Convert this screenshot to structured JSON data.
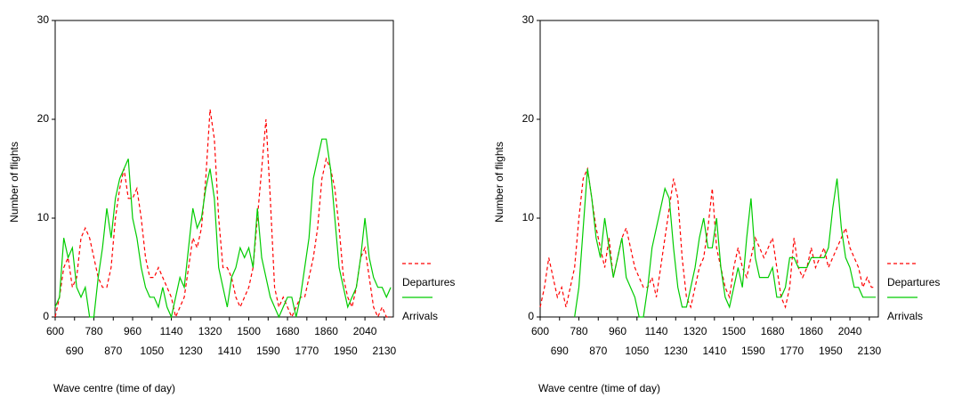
{
  "chart_data": [
    {
      "type": "line",
      "xlabel": "Wave centre (time of day)",
      "ylabel": "Number of flights",
      "x": [
        600,
        620,
        640,
        660,
        680,
        700,
        720,
        740,
        760,
        780,
        800,
        820,
        840,
        860,
        880,
        900,
        920,
        940,
        960,
        980,
        1000,
        1020,
        1040,
        1060,
        1080,
        1100,
        1120,
        1140,
        1160,
        1180,
        1200,
        1220,
        1240,
        1260,
        1280,
        1300,
        1320,
        1340,
        1360,
        1380,
        1400,
        1420,
        1440,
        1460,
        1480,
        1500,
        1520,
        1540,
        1560,
        1580,
        1600,
        1620,
        1640,
        1660,
        1680,
        1700,
        1720,
        1740,
        1760,
        1780,
        1800,
        1820,
        1840,
        1860,
        1880,
        1900,
        1920,
        1940,
        1960,
        1980,
        2000,
        2020,
        2040,
        2060,
        2080,
        2100,
        2120,
        2140,
        2160
      ],
      "series": [
        {
          "name": "Departures",
          "color": "#ff0000",
          "dashed": true,
          "values": [
            0,
            2,
            5,
            6,
            3,
            4,
            8,
            9,
            8,
            6,
            4,
            3,
            3,
            5,
            10,
            13,
            15,
            12,
            12,
            13,
            10,
            6,
            4,
            4,
            5,
            4,
            3,
            2,
            0,
            1,
            2,
            5,
            8,
            7,
            9,
            14,
            21,
            18,
            10,
            5,
            5,
            4,
            2,
            1,
            2,
            3,
            5,
            10,
            15,
            20,
            12,
            3,
            1,
            2,
            1,
            0,
            1,
            2,
            2,
            4,
            6,
            9,
            14,
            16,
            15,
            13,
            9,
            4,
            2,
            1,
            3,
            6,
            7,
            4,
            1,
            0,
            1,
            0,
            0
          ]
        },
        {
          "name": "Arrivals",
          "color": "#00cc00",
          "dashed": false,
          "values": [
            1,
            2,
            8,
            6,
            7,
            3,
            2,
            3,
            0,
            0,
            4,
            7,
            11,
            8,
            12,
            14,
            15,
            16,
            10,
            8,
            5,
            3,
            2,
            2,
            1,
            3,
            1,
            0,
            2,
            4,
            3,
            7,
            11,
            9,
            10,
            13,
            15,
            12,
            5,
            3,
            1,
            4,
            5,
            7,
            6,
            7,
            5,
            11,
            6,
            4,
            2,
            1,
            0,
            1,
            2,
            2,
            0,
            2,
            5,
            8,
            14,
            16,
            18,
            18,
            15,
            10,
            5,
            3,
            1,
            2,
            3,
            6,
            10,
            6,
            4,
            3,
            3,
            2,
            3
          ]
        }
      ],
      "xlim": [
        600,
        2172
      ],
      "xticks": [
        600,
        690,
        780,
        870,
        960,
        1050,
        1140,
        1230,
        1320,
        1410,
        1500,
        1590,
        1680,
        1770,
        1860,
        1950,
        2040,
        2130
      ],
      "ylim": [
        0,
        30
      ],
      "yticks": [
        0,
        10,
        20,
        30
      ],
      "legend": "right"
    },
    {
      "type": "line",
      "xlabel": "Wave centre (time of day)",
      "ylabel": "Number of flights",
      "x": [
        600,
        620,
        640,
        660,
        680,
        700,
        720,
        740,
        760,
        780,
        800,
        820,
        840,
        860,
        880,
        900,
        920,
        940,
        960,
        980,
        1000,
        1020,
        1040,
        1060,
        1080,
        1100,
        1120,
        1140,
        1160,
        1180,
        1200,
        1220,
        1240,
        1260,
        1280,
        1300,
        1320,
        1340,
        1360,
        1380,
        1400,
        1420,
        1440,
        1460,
        1480,
        1500,
        1520,
        1540,
        1560,
        1580,
        1600,
        1620,
        1640,
        1660,
        1680,
        1700,
        1720,
        1740,
        1760,
        1780,
        1800,
        1820,
        1840,
        1860,
        1880,
        1900,
        1920,
        1940,
        1960,
        1980,
        2000,
        2020,
        2040,
        2060,
        2080,
        2100,
        2120,
        2140,
        2160
      ],
      "series": [
        {
          "name": "Departures",
          "color": "#ff0000",
          "dashed": true,
          "values": [
            1,
            3,
            6,
            4,
            2,
            3,
            1,
            3,
            5,
            10,
            14,
            15,
            12,
            9,
            7,
            5,
            8,
            4,
            6,
            8,
            9,
            7,
            5,
            4,
            3,
            3,
            4,
            2,
            5,
            8,
            11,
            14,
            12,
            6,
            2,
            1,
            3,
            5,
            6,
            9,
            13,
            7,
            5,
            3,
            2,
            5,
            7,
            5,
            4,
            6,
            8,
            7,
            6,
            7,
            8,
            5,
            2,
            1,
            3,
            8,
            5,
            4,
            5,
            7,
            5,
            6,
            7,
            5,
            6,
            7,
            8,
            9,
            7,
            6,
            5,
            3,
            4,
            3,
            3
          ]
        },
        {
          "name": "Arrivals",
          "color": "#00cc00",
          "dashed": false,
          "values": [
            null,
            null,
            null,
            null,
            null,
            null,
            null,
            null,
            0,
            3,
            9,
            15,
            12,
            8,
            6,
            10,
            7,
            4,
            6,
            8,
            4,
            3,
            2,
            0,
            0,
            3,
            7,
            9,
            11,
            13,
            12,
            7,
            3,
            1,
            1,
            3,
            5,
            8,
            10,
            7,
            7,
            10,
            5,
            2,
            1,
            3,
            5,
            3,
            8,
            12,
            6,
            4,
            4,
            4,
            5,
            2,
            2,
            3,
            6,
            6,
            5,
            5,
            5,
            6,
            6,
            6,
            6,
            7,
            11,
            14,
            9,
            6,
            5,
            3,
            3,
            2,
            2,
            2,
            2
          ]
        }
      ],
      "xlim": [
        600,
        2172
      ],
      "xticks": [
        600,
        690,
        780,
        870,
        960,
        1050,
        1140,
        1230,
        1320,
        1410,
        1500,
        1590,
        1680,
        1770,
        1860,
        1950,
        2040,
        2130
      ],
      "ylim": [
        0,
        30
      ],
      "yticks": [
        0,
        10,
        20,
        30
      ],
      "legend": "right"
    }
  ]
}
